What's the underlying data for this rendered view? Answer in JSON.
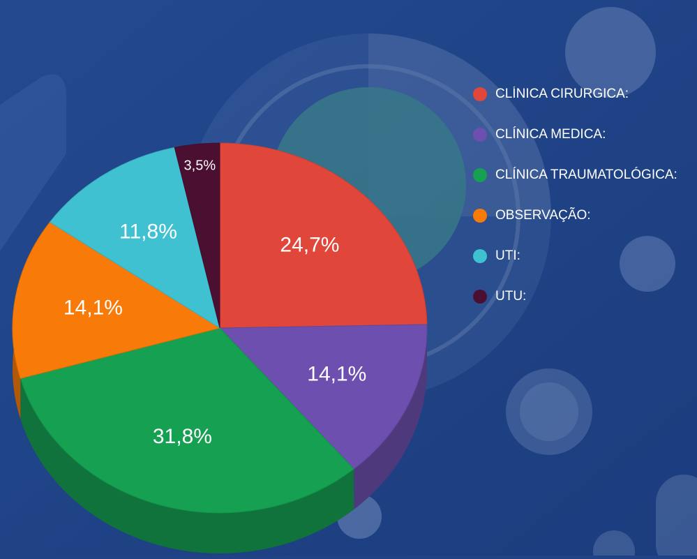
{
  "chart_data": {
    "type": "pie",
    "categories": [
      "CLÍNICA CIRURGICA:",
      "CLÍNICA MEDICA:",
      "CLÍNICA TRAUMATOLÓGICA:",
      "OBSERVAÇÃO:",
      "UTI:",
      "UTU:"
    ],
    "values": [
      24.7,
      14.1,
      31.8,
      14.1,
      11.8,
      3.5
    ],
    "value_labels": [
      "24,7%",
      "14,1%",
      "31,8%",
      "14,1%",
      "11,8%",
      "3,5%"
    ],
    "colors": [
      "#e0463a",
      "#6c4fae",
      "#15a052",
      "#f87a08",
      "#40c1d2",
      "#4b0f32"
    ],
    "legend": "right"
  }
}
